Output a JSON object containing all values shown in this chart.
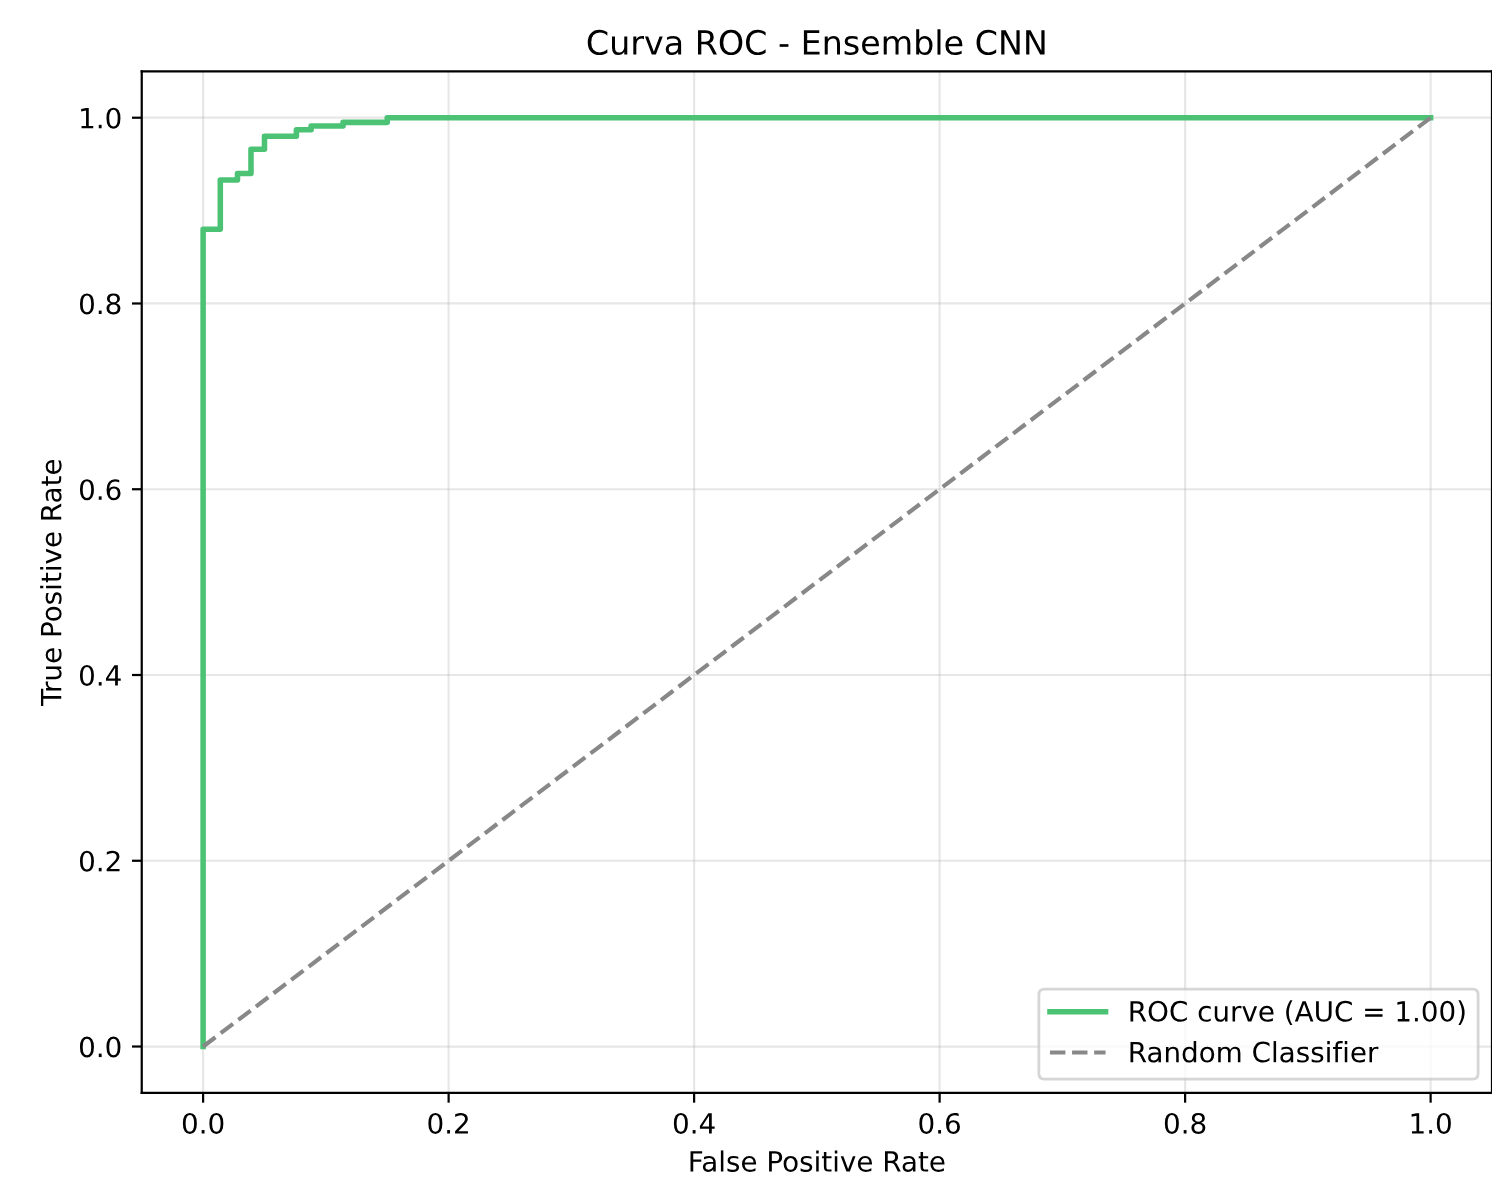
{
  "chart_data": {
    "type": "step",
    "title": "Curva ROC - Ensemble CNN",
    "xlabel": "False Positive Rate",
    "ylabel": "True Positive Rate",
    "xlim": [
      -0.05,
      1.05
    ],
    "ylim": [
      -0.05,
      1.05
    ],
    "xticks": [
      {
        "value": 0,
        "label": "0.0"
      },
      0.2,
      0.4,
      0.6,
      0.8,
      {
        "value": 1,
        "label": "1.0"
      }
    ],
    "yticks": [
      {
        "value": 0,
        "label": "0.0"
      },
      0.2,
      0.4,
      0.6,
      0.8,
      {
        "value": 1,
        "label": "1.0"
      }
    ],
    "grid": true,
    "legend": "bottom right",
    "series": [
      {
        "name": "ROC curve (AUC = 1.00)",
        "color": "#4cc274",
        "line_style": "solid",
        "x": [
          0,
          0,
          0.014,
          0.028,
          0.039,
          0.05,
          0.076,
          0.088,
          0.114,
          0.15,
          1.0
        ],
        "values": [
          0,
          0.88,
          0.933,
          0.94,
          0.966,
          0.98,
          0.987,
          0.991,
          0.995,
          1.0,
          1.0
        ]
      },
      {
        "name": "Random Classifier",
        "type": "line",
        "color": "#888888",
        "line_style": "dashed",
        "x": [
          0,
          1
        ],
        "values": [
          0,
          1
        ]
      }
    ]
  }
}
